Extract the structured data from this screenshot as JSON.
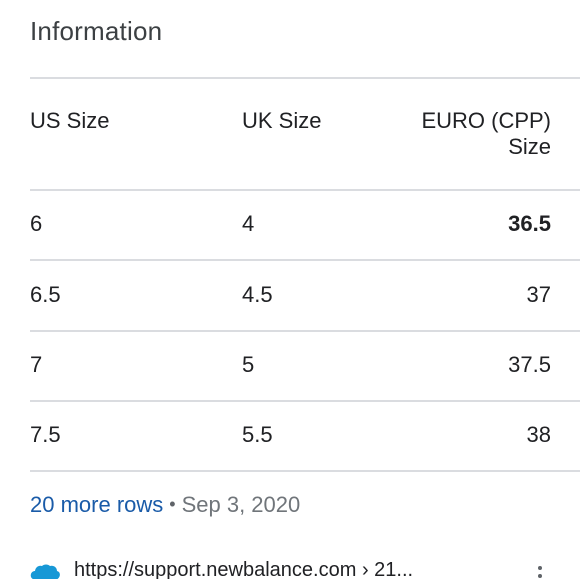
{
  "section_title": "Information",
  "table": {
    "headers": [
      "US Size",
      "UK Size",
      "EURO (CPP)",
      "Size"
    ],
    "rows": [
      [
        "6",
        "4",
        "36.5"
      ],
      [
        "6.5",
        "4.5",
        "37"
      ],
      [
        "7",
        "5",
        "37.5"
      ],
      [
        "7.5",
        "5.5",
        "38"
      ]
    ]
  },
  "footer": {
    "more_rows": "20 more rows",
    "separator": "•",
    "date": "Sep 3, 2020"
  },
  "source": {
    "url": "https://support.newbalance.com › 21...",
    "favicon": "salesforce-cloud-icon"
  },
  "colors": {
    "link": "#1a5ba8",
    "divider": "#dadce0",
    "favicon": "#1798d6"
  }
}
